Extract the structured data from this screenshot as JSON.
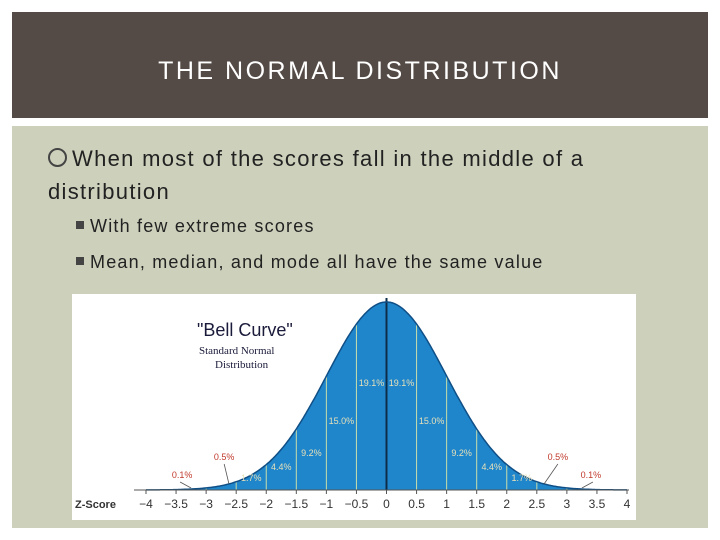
{
  "title": "THE NORMAL DISTRIBUTION",
  "bullets": {
    "main": "When most of the scores fall in the middle of a distribution",
    "sub1": "With few extreme scores",
    "sub2": "Mean, median, and mode all have the same value"
  },
  "chart_data": {
    "type": "area",
    "title": "\"Bell Curve\"",
    "subtitle_line1": "Standard Normal",
    "subtitle_line2": "Distribution",
    "xlabel": "Z-Score",
    "xlim": [
      -4,
      4
    ],
    "x_ticks": [
      "−4",
      "−3.5",
      "−3",
      "−2.5",
      "−2",
      "−1.5",
      "−1",
      "−0.5",
      "0",
      "0.5",
      "1",
      "1.5",
      "2",
      "2.5",
      "3",
      "3.5",
      "4"
    ],
    "segment_labels": [
      {
        "x": -0.25,
        "label": "19.1%"
      },
      {
        "x": 0.25,
        "label": "19.1%"
      },
      {
        "x": -0.75,
        "label": "15.0%"
      },
      {
        "x": 0.75,
        "label": "15.0%"
      },
      {
        "x": -1.25,
        "label": "9.2%"
      },
      {
        "x": 1.25,
        "label": "9.2%"
      },
      {
        "x": -1.75,
        "label": "4.4%"
      },
      {
        "x": 1.75,
        "label": "4.4%"
      },
      {
        "x": -2.25,
        "label": "1.7%"
      },
      {
        "x": 2.25,
        "label": "1.7%"
      },
      {
        "x": -2.75,
        "label": "0.5%"
      },
      {
        "x": 2.75,
        "label": "0.5%"
      },
      {
        "x": -3.25,
        "label": "0.1%"
      },
      {
        "x": 3.25,
        "label": "0.1%"
      }
    ],
    "fill_color": "#1f86cc",
    "line_color": "#0f4f86",
    "divider_color": "#c8dda8",
    "label_color": "#e7e0b8",
    "outer_label_color": "#c0392b"
  }
}
